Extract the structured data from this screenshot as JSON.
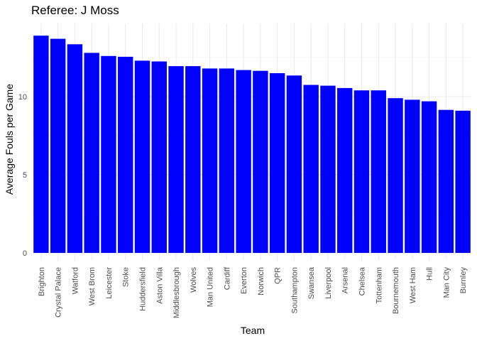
{
  "chart_data": {
    "type": "bar",
    "title": "Referee: J Moss",
    "xlabel": "Team",
    "ylabel": "Average Fouls per Game",
    "categories": [
      "Brighton",
      "Crystal Palace",
      "Watford",
      "West Brom",
      "Leicester",
      "Stoke",
      "Huddersfield",
      "Aston Villa",
      "Middlesbrough",
      "Wolves",
      "Man United",
      "Cardiff",
      "Everton",
      "Norwich",
      "QPR",
      "Southampton",
      "Swansea",
      "Liverpool",
      "Arsenal",
      "Chelsea",
      "Tottenham",
      "Bournemouth",
      "West Ham",
      "Hull",
      "Man City",
      "Burnley"
    ],
    "values": [
      13.9,
      13.7,
      13.35,
      12.8,
      12.6,
      12.55,
      12.3,
      12.25,
      11.95,
      11.95,
      11.8,
      11.8,
      11.7,
      11.65,
      11.5,
      11.35,
      10.75,
      10.7,
      10.55,
      10.4,
      10.4,
      9.9,
      9.8,
      9.7,
      9.15,
      9.1
    ],
    "yticks": [
      0,
      5,
      10
    ],
    "ylim": [
      0,
      14.6
    ],
    "grid": true,
    "bar_color": "#0000ff",
    "grid_color": "#ebebeb",
    "background": "#ffffff"
  }
}
